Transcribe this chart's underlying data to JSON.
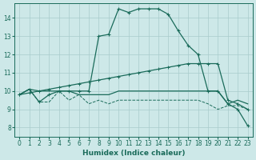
{
  "xlabel": "Humidex (Indice chaleur)",
  "xlim": [
    -0.5,
    23.5
  ],
  "ylim": [
    7.5,
    14.8
  ],
  "yticks": [
    8,
    9,
    10,
    11,
    12,
    13,
    14
  ],
  "xticks": [
    0,
    1,
    2,
    3,
    4,
    5,
    6,
    7,
    8,
    9,
    10,
    11,
    12,
    13,
    14,
    15,
    16,
    17,
    18,
    19,
    20,
    21,
    22,
    23
  ],
  "bg_color": "#cde8e8",
  "grid_color": "#a8cccc",
  "line_color": "#1a6b5a",
  "curve_main_x": [
    0,
    1,
    2,
    3,
    4,
    5,
    6,
    7,
    8,
    9,
    10,
    11,
    12,
    13,
    14,
    15,
    16,
    17,
    18,
    19,
    20,
    21,
    22,
    23
  ],
  "curve_main_y": [
    9.8,
    10.1,
    9.4,
    9.8,
    10.0,
    10.0,
    10.0,
    10.0,
    13.0,
    13.1,
    14.5,
    14.3,
    14.5,
    14.5,
    14.5,
    14.2,
    13.3,
    12.5,
    12.0,
    10.0,
    10.0,
    9.3,
    9.0,
    8.1
  ],
  "curve_diag_x": [
    0,
    1,
    2,
    3,
    4,
    5,
    6,
    7,
    8,
    9,
    10,
    11,
    12,
    13,
    14,
    15,
    16,
    17,
    18,
    19,
    20,
    21,
    22,
    23
  ],
  "curve_diag_y": [
    9.8,
    9.9,
    10.0,
    10.1,
    10.2,
    10.3,
    10.4,
    10.5,
    10.6,
    10.7,
    10.8,
    10.9,
    11.0,
    11.1,
    11.2,
    11.3,
    11.4,
    11.5,
    11.5,
    11.5,
    11.5,
    9.5,
    9.3,
    9.0
  ],
  "curve_flat_x": [
    0,
    1,
    2,
    3,
    4,
    5,
    6,
    7,
    8,
    9,
    10,
    11,
    12,
    13,
    14,
    15,
    16,
    17,
    18,
    19,
    20,
    21,
    22,
    23
  ],
  "curve_flat_y": [
    9.8,
    10.1,
    10.0,
    10.0,
    10.0,
    10.0,
    9.8,
    9.8,
    9.8,
    9.8,
    10.0,
    10.0,
    10.0,
    10.0,
    10.0,
    10.0,
    10.0,
    10.0,
    10.0,
    10.0,
    10.0,
    9.3,
    9.5,
    9.3
  ],
  "curve_low_x": [
    0,
    1,
    2,
    3,
    4,
    5,
    6,
    7,
    8,
    9,
    10,
    11,
    12,
    13,
    14,
    15,
    16,
    17,
    18,
    19,
    20,
    21,
    22,
    23
  ],
  "curve_low_y": [
    9.8,
    10.1,
    9.4,
    9.4,
    10.0,
    9.5,
    9.8,
    9.3,
    9.5,
    9.3,
    9.5,
    9.5,
    9.5,
    9.5,
    9.5,
    9.5,
    9.5,
    9.5,
    9.5,
    9.3,
    9.0,
    9.2,
    9.2,
    9.0
  ]
}
